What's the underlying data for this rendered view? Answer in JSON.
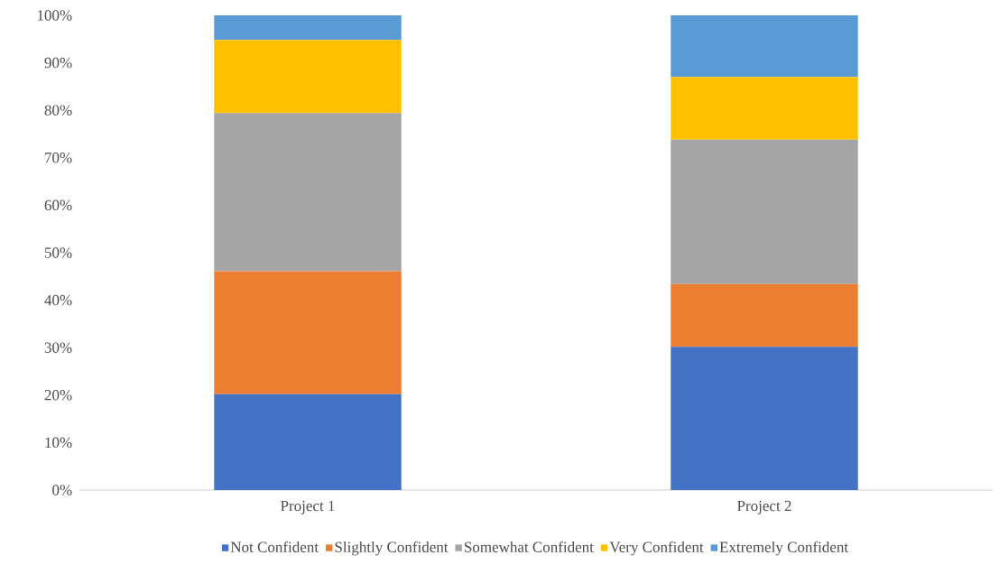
{
  "chart_data": {
    "type": "bar",
    "stacked": true,
    "categories": [
      "Project 1",
      "Project 2"
    ],
    "series": [
      {
        "name": "Not Confident",
        "color": "#4472c4",
        "values": [
          20.2,
          30.2
        ]
      },
      {
        "name": "Slightly Confident",
        "color": "#ed7d31",
        "values": [
          25.9,
          13.2
        ]
      },
      {
        "name": "Somewhat Confident",
        "color": "#a5a5a5",
        "values": [
          33.3,
          30.4
        ]
      },
      {
        "name": "Very Confident",
        "color": "#ffc000",
        "values": [
          15.4,
          13.2
        ]
      },
      {
        "name": "Extremely Confident",
        "color": "#5b9bd5",
        "values": [
          5.2,
          13.0
        ]
      }
    ],
    "ylim": [
      0,
      100
    ],
    "yticks": [
      {
        "value": 0,
        "label": "0%"
      },
      {
        "value": 10,
        "label": "10%"
      },
      {
        "value": 20,
        "label": "20%"
      },
      {
        "value": 30,
        "label": "30%"
      },
      {
        "value": 40,
        "label": "40%"
      },
      {
        "value": 50,
        "label": "50%"
      },
      {
        "value": 60,
        "label": "60%"
      },
      {
        "value": 70,
        "label": "70%"
      },
      {
        "value": 80,
        "label": "80%"
      },
      {
        "value": 90,
        "label": "90%"
      },
      {
        "value": 100,
        "label": "100%"
      }
    ],
    "legend": "bottom"
  }
}
